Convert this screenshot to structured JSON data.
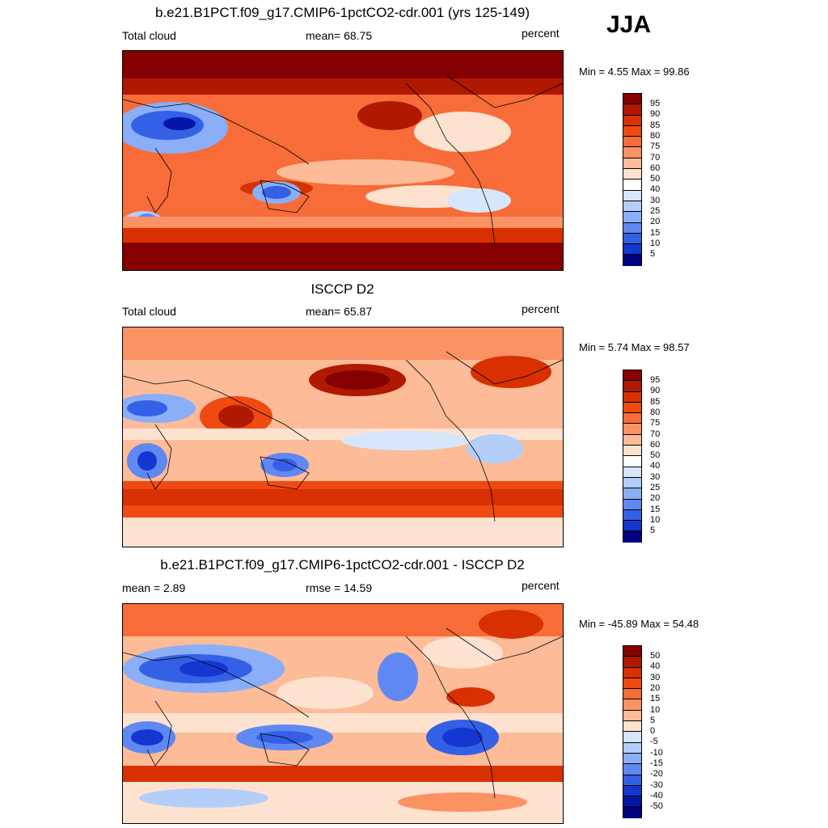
{
  "season": "JJA",
  "panels": [
    {
      "id": "model",
      "title": "b.e21.B1PCT.f09_g17.CMIP6-1pctCO2-cdr.001 (yrs 125-149)",
      "left_label": "Total cloud",
      "center_label": "mean=  68.75",
      "right_label": "percent",
      "minmax": "Min =   4.55 Max =  99.86",
      "colorbar_labels": [
        "95",
        "90",
        "85",
        "80",
        "75",
        "70",
        "60",
        "50",
        "40",
        "30",
        "25",
        "20",
        "15",
        "10",
        "5"
      ]
    },
    {
      "id": "obs",
      "title": "ISCCP D2",
      "left_label": "Total cloud",
      "center_label": "mean=  65.87",
      "right_label": "percent",
      "minmax": "Min =   5.74 Max =  98.57",
      "colorbar_labels": [
        "95",
        "90",
        "85",
        "80",
        "75",
        "70",
        "60",
        "50",
        "40",
        "30",
        "25",
        "20",
        "15",
        "10",
        "5"
      ]
    },
    {
      "id": "diff",
      "title": "b.e21.B1PCT.f09_g17.CMIP6-1pctCO2-cdr.001 - ISCCP D2",
      "left_label": "mean =   2.89",
      "center_label": "rmse =  14.59",
      "right_label": "percent",
      "minmax": "Min = -45.89 Max =  54.48",
      "colorbar_labels": [
        "50",
        "40",
        "30",
        "20",
        "15",
        "10",
        "5",
        "0",
        "-5",
        "-10",
        "-15",
        "-20",
        "-30",
        "-40",
        "-50"
      ]
    }
  ],
  "colors": {
    "palette": [
      "#850000",
      "#b01800",
      "#d83000",
      "#ef4a12",
      "#f76c38",
      "#fb9264",
      "#fdbb98",
      "#fee2d0",
      "#ffffff",
      "#d6e6fb",
      "#b3cef9",
      "#8aaef7",
      "#5f88f2",
      "#3460e6",
      "#1337d0",
      "#0314a8",
      "#000080"
    ]
  }
}
